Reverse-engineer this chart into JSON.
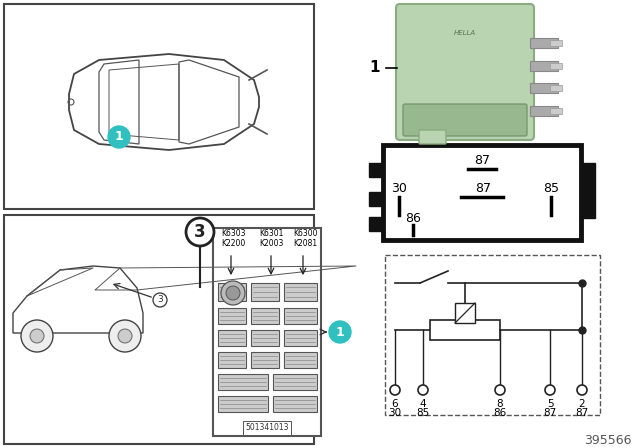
{
  "bg_color": "#ffffff",
  "part_number": "395566",
  "ref_number": "501341013",
  "relay_color": "#b8d4b0",
  "relay_color2": "#c8dcc0",
  "labels_row1": [
    "K6303",
    "K6301",
    "K6300"
  ],
  "labels_row2": [
    "K2200",
    "K2003",
    "K2081"
  ],
  "callout_color": "#30c0c0",
  "pin_labels_box": [
    "87",
    "30",
    "87",
    "85",
    "86"
  ],
  "schematic_pins_top": [
    "6",
    "4",
    "8",
    "5",
    "2"
  ],
  "schematic_pins_bot": [
    "30",
    "85",
    "86",
    "87",
    "87"
  ]
}
